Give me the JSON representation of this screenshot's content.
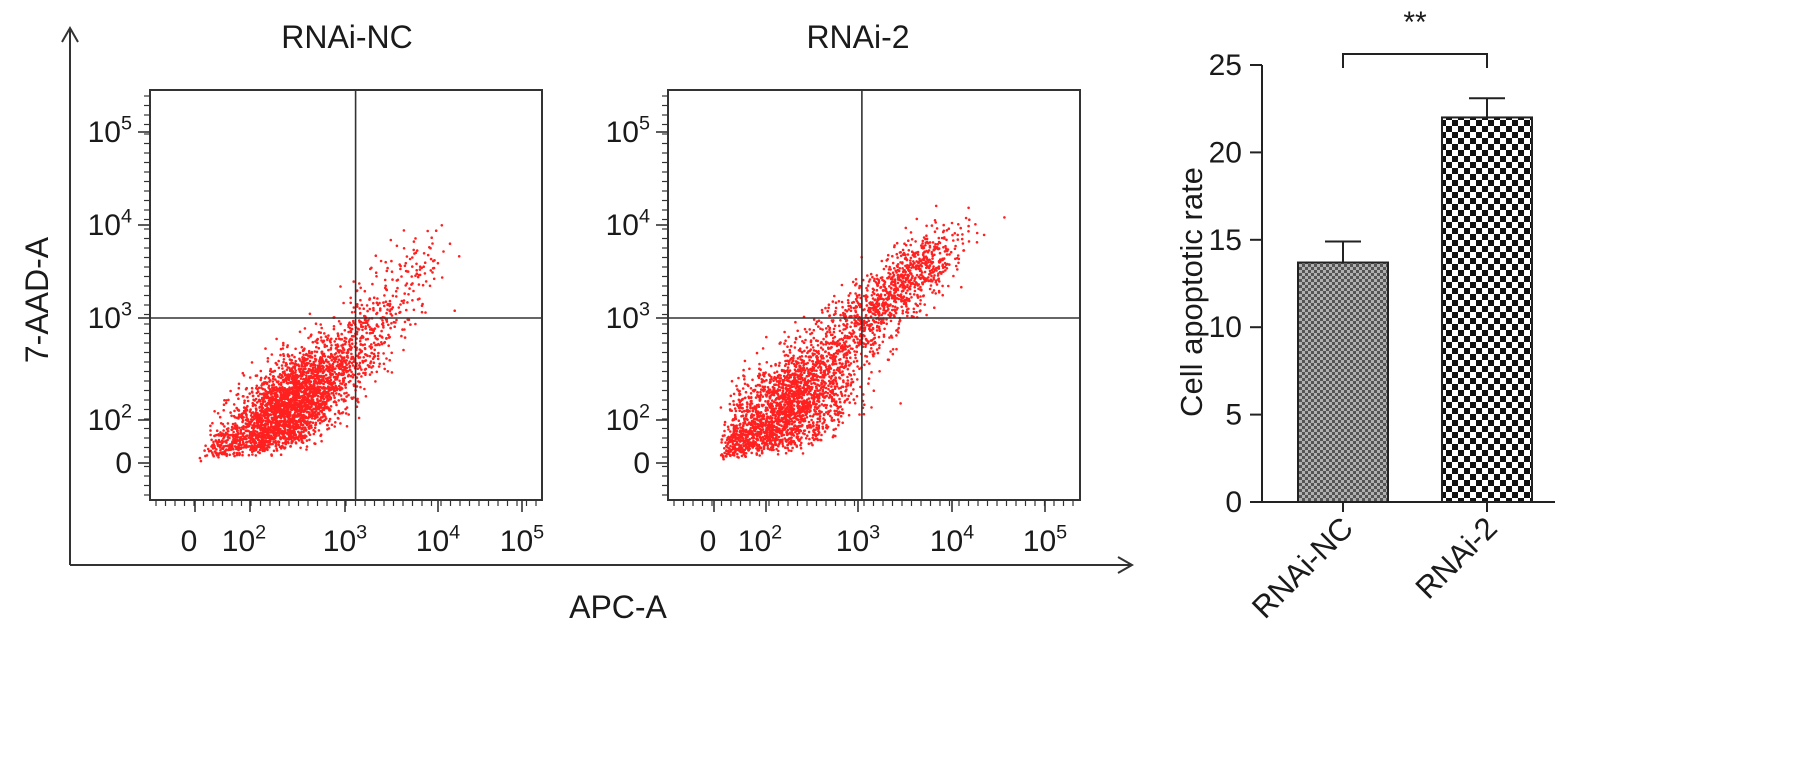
{
  "colors": {
    "dots": "#ff2020",
    "axis": "#333333",
    "bar_fill": "#999999",
    "bar_stroke": "#222222"
  },
  "shared_axes": {
    "xlabel": "APC-A",
    "ylabel": "7-AAD-A"
  },
  "chart_data": [
    {
      "type": "scatter",
      "title": "RNAi-NC",
      "xlabel": "APC-A",
      "ylabel": "7-AAD-A",
      "x_scale": "biexponential",
      "y_scale": "biexponential",
      "x_ticks": [
        "0",
        "10^2",
        "10^3",
        "10^4",
        "10^5"
      ],
      "y_ticks": [
        "0",
        "10^2",
        "10^3",
        "10^4",
        "10^5"
      ],
      "quadrant_gate": {
        "x": 1300,
        "y": 1000
      },
      "populations": [
        {
          "center_x": 250,
          "center_y": 130,
          "spread_decades": 0.35,
          "share": 0.84
        },
        {
          "center_x": 1200,
          "center_y": 500,
          "spread_decades": 0.3,
          "share": 0.12
        },
        {
          "center_x": 3500,
          "center_y": 2500,
          "spread_decades": 0.3,
          "share": 0.04
        }
      ]
    },
    {
      "type": "scatter",
      "title": "RNAi-2",
      "xlabel": "APC-A",
      "ylabel": "7-AAD-A",
      "x_scale": "biexponential",
      "y_scale": "biexponential",
      "x_ticks": [
        "0",
        "10^2",
        "10^3",
        "10^4",
        "10^5"
      ],
      "y_ticks": [
        "0",
        "10^2",
        "10^3",
        "10^4",
        "10^5"
      ],
      "quadrant_gate": {
        "x": 1100,
        "y": 1000
      },
      "populations": [
        {
          "center_x": 180,
          "center_y": 140,
          "spread_decades": 0.38,
          "share": 0.7
        },
        {
          "center_x": 1500,
          "center_y": 1200,
          "spread_decades": 0.3,
          "share": 0.18
        },
        {
          "center_x": 4500,
          "center_y": 3500,
          "spread_decades": 0.25,
          "share": 0.12
        }
      ]
    },
    {
      "type": "bar",
      "categories": [
        "RNAi-NC",
        "RNAi-2"
      ],
      "values": [
        13.7,
        22.0
      ],
      "errors": [
        1.2,
        1.1
      ],
      "ylabel": "Cell apoptotic rate",
      "ylim": [
        0,
        25
      ],
      "yticks": [
        "0",
        "5",
        "10",
        "15",
        "20",
        "25"
      ],
      "significance": {
        "from": "RNAi-NC",
        "to": "RNAi-2",
        "label": "**"
      },
      "grid": false
    }
  ]
}
